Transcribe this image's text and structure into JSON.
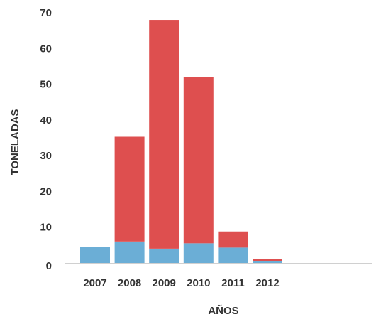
{
  "chart_data": {
    "type": "bar",
    "stacked": true,
    "categories": [
      "2007",
      "2008",
      "2009",
      "2010",
      "2011",
      "2012"
    ],
    "series": [
      {
        "color": "#6baed6",
        "values": [
          4.5,
          6.0,
          4.0,
          5.5,
          4.3,
          0.5
        ]
      },
      {
        "color": "#de4f4f",
        "values": [
          0,
          29.3,
          64.0,
          46.5,
          4.5,
          0.5
        ]
      }
    ],
    "xlabel": "AÑOS",
    "ylabel": "TONELADAS",
    "yticks": [
      "0",
      "10",
      "20",
      "30",
      "40",
      "50",
      "60",
      "70"
    ],
    "ylim": [
      0,
      70
    ],
    "grid": false,
    "legend": "none"
  }
}
